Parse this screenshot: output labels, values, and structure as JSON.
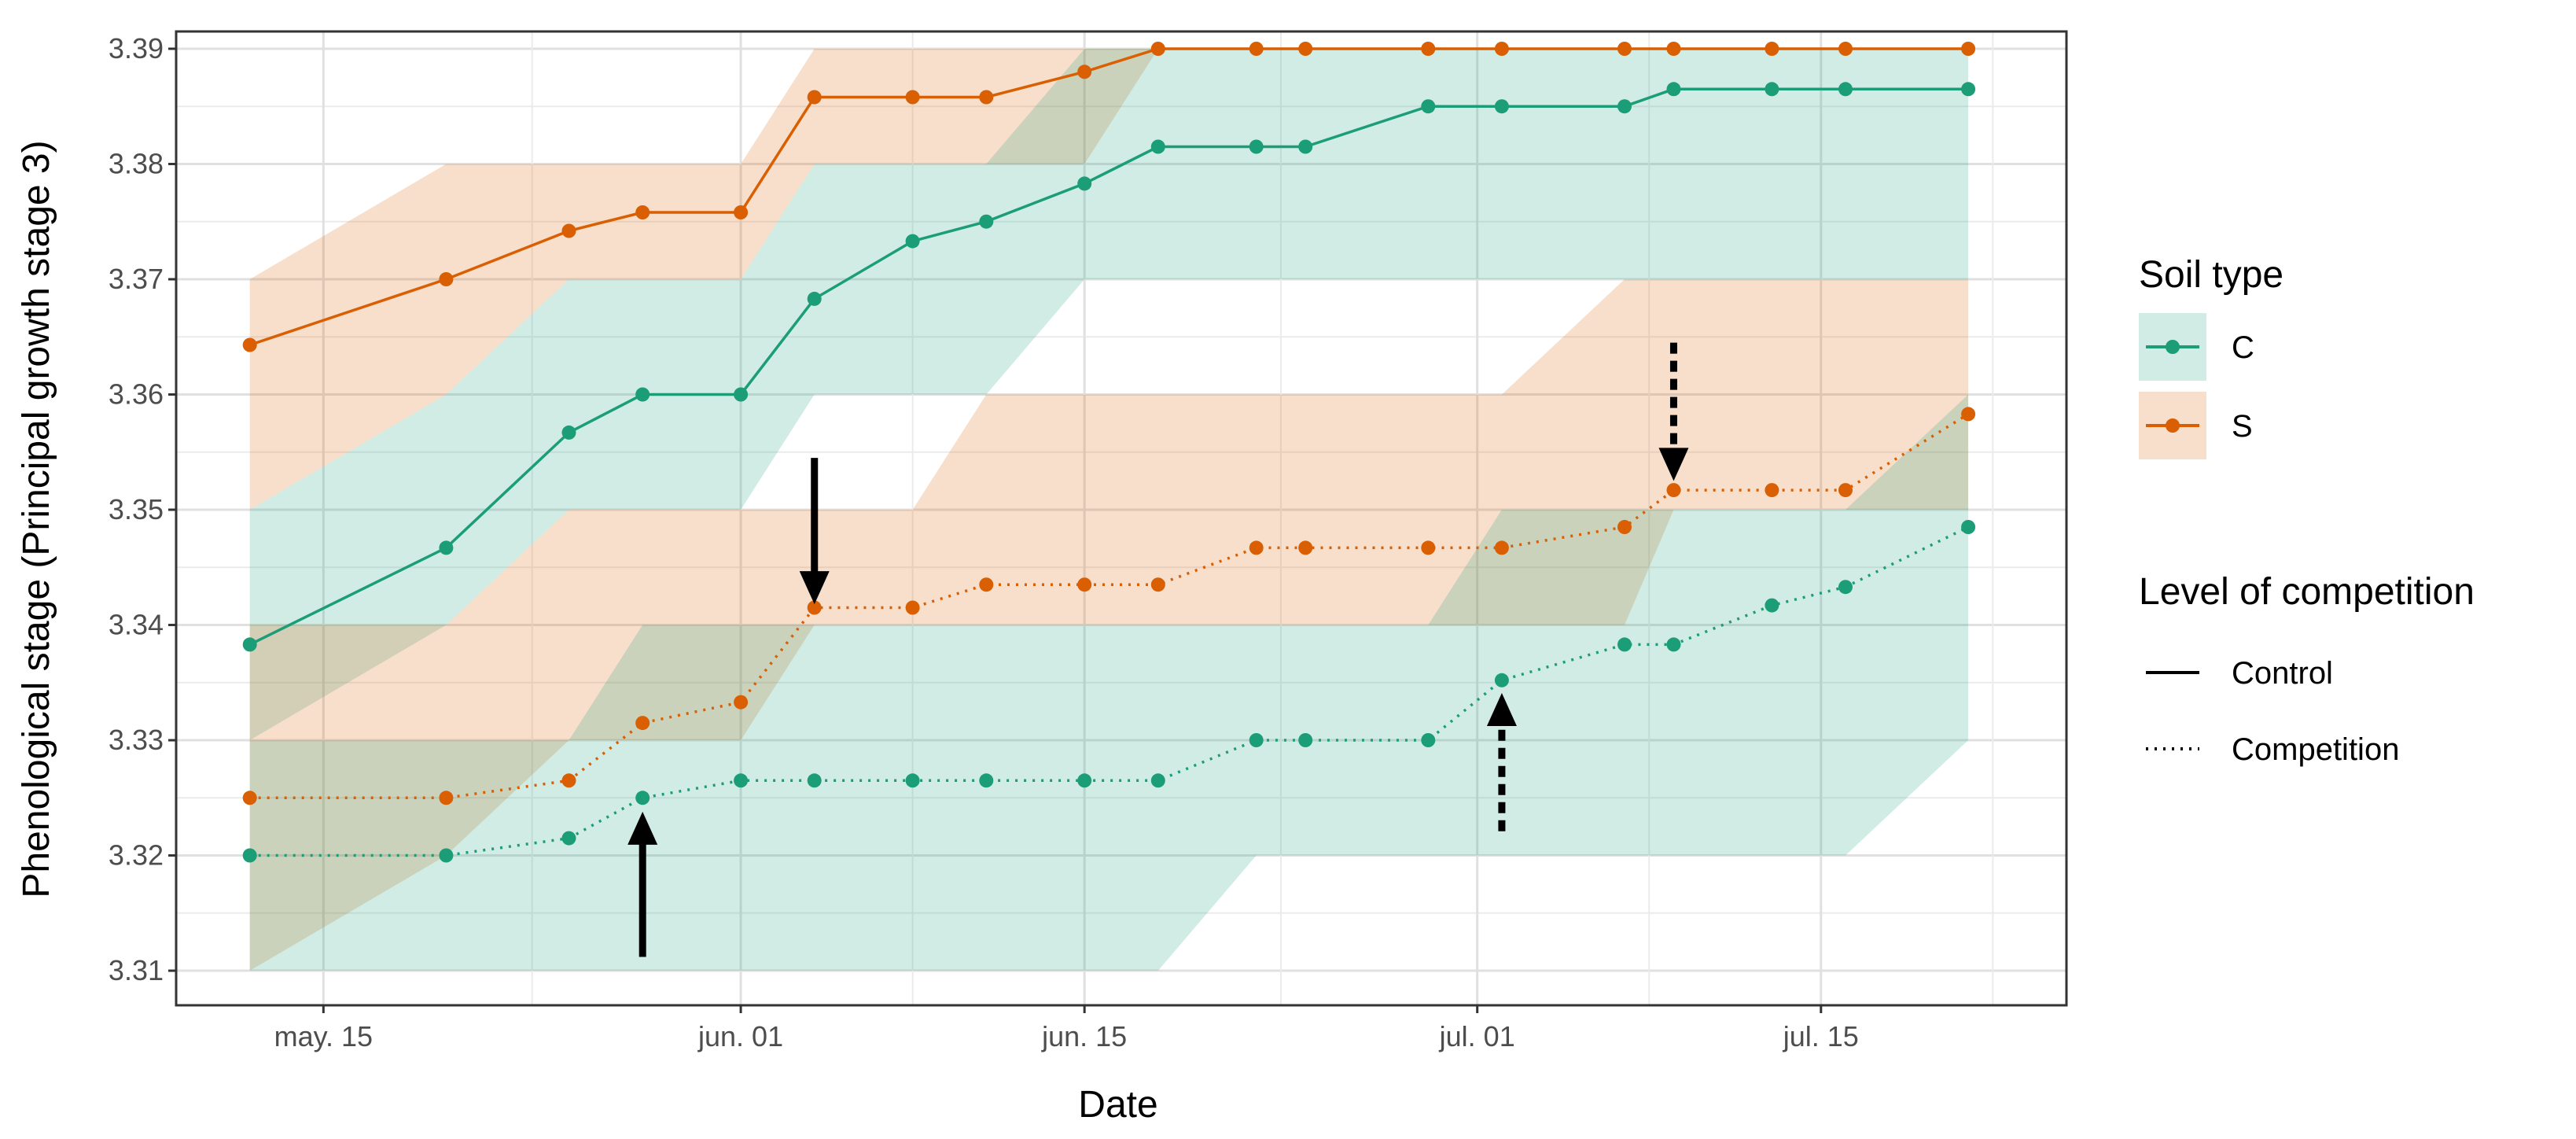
{
  "chart_data": {
    "type": "line",
    "xlabel": "Date",
    "ylabel": "Phenological stage (Principal growth stage 3)",
    "ylim": [
      3.307,
      3.3915
    ],
    "yticks": [
      3.31,
      3.32,
      3.33,
      3.34,
      3.35,
      3.36,
      3.37,
      3.38,
      3.39
    ],
    "xlim": [
      "2021-05-09",
      "2021-07-25"
    ],
    "xticks": [
      {
        "date": "2021-05-15",
        "label": "may. 15"
      },
      {
        "date": "2021-06-01",
        "label": "jun. 01"
      },
      {
        "date": "2021-06-15",
        "label": "jun. 15"
      },
      {
        "date": "2021-07-01",
        "label": "jul. 01"
      },
      {
        "date": "2021-07-15",
        "label": "jul. 15"
      }
    ],
    "grid": true,
    "legend_placement": "right",
    "legends": [
      {
        "title": "Soil type",
        "entries": [
          {
            "label": "C",
            "color": "#1b9e77"
          },
          {
            "label": "S",
            "color": "#d95f02"
          }
        ]
      },
      {
        "title": "Level of competition",
        "entries": [
          {
            "label": "Control",
            "linetype": "solid"
          },
          {
            "label": "Competition",
            "linetype": "dotted"
          }
        ]
      }
    ],
    "series": [
      {
        "soil": "S",
        "level": "Control",
        "color": "#d95f02",
        "linetype": "solid",
        "x": [
          "2021-05-12",
          "2021-05-20",
          "2021-05-25",
          "2021-05-28",
          "2021-06-01",
          "2021-06-04",
          "2021-06-08",
          "2021-06-11",
          "2021-06-15",
          "2021-06-18",
          "2021-06-22",
          "2021-06-24",
          "2021-06-29",
          "2021-07-02",
          "2021-07-07",
          "2021-07-09",
          "2021-07-13",
          "2021-07-16",
          "2021-07-21"
        ],
        "y": [
          3.3643,
          3.37,
          3.3742,
          3.3758,
          3.3758,
          3.3858,
          3.3858,
          3.3858,
          3.388,
          3.39,
          3.39,
          3.39,
          3.39,
          3.39,
          3.39,
          3.39,
          3.39,
          3.39,
          3.39
        ],
        "band_lower": [
          3.35,
          3.36,
          3.37,
          3.37,
          3.37,
          3.38,
          3.38,
          3.38,
          3.38,
          3.39,
          3.39,
          3.39,
          3.39,
          3.39,
          3.39,
          3.39,
          3.39,
          3.39,
          3.39
        ],
        "band_upper": [
          3.37,
          3.38,
          3.38,
          3.38,
          3.38,
          3.39,
          3.39,
          3.39,
          3.39,
          3.39,
          3.39,
          3.39,
          3.39,
          3.39,
          3.39,
          3.39,
          3.39,
          3.39,
          3.39
        ]
      },
      {
        "soil": "C",
        "level": "Control",
        "color": "#1b9e77",
        "linetype": "solid",
        "x": [
          "2021-05-12",
          "2021-05-20",
          "2021-05-25",
          "2021-05-28",
          "2021-06-01",
          "2021-06-04",
          "2021-06-08",
          "2021-06-11",
          "2021-06-15",
          "2021-06-18",
          "2021-06-22",
          "2021-06-24",
          "2021-06-29",
          "2021-07-02",
          "2021-07-07",
          "2021-07-09",
          "2021-07-13",
          "2021-07-16",
          "2021-07-21"
        ],
        "y": [
          3.3383,
          3.3467,
          3.3567,
          3.36,
          3.36,
          3.3683,
          3.3733,
          3.375,
          3.3783,
          3.3815,
          3.3815,
          3.3815,
          3.385,
          3.385,
          3.385,
          3.3865,
          3.3865,
          3.3865,
          3.3865
        ],
        "band_lower": [
          3.33,
          3.34,
          3.35,
          3.35,
          3.35,
          3.36,
          3.36,
          3.36,
          3.37,
          3.37,
          3.37,
          3.37,
          3.37,
          3.37,
          3.37,
          3.37,
          3.37,
          3.37,
          3.37
        ],
        "band_upper": [
          3.35,
          3.36,
          3.37,
          3.37,
          3.37,
          3.38,
          3.38,
          3.38,
          3.39,
          3.39,
          3.39,
          3.39,
          3.39,
          3.39,
          3.39,
          3.39,
          3.39,
          3.39,
          3.39
        ]
      },
      {
        "soil": "S",
        "level": "Competition",
        "color": "#d95f02",
        "linetype": "dotted",
        "x": [
          "2021-05-12",
          "2021-05-20",
          "2021-05-25",
          "2021-05-28",
          "2021-06-01",
          "2021-06-04",
          "2021-06-08",
          "2021-06-11",
          "2021-06-15",
          "2021-06-18",
          "2021-06-22",
          "2021-06-24",
          "2021-06-29",
          "2021-07-02",
          "2021-07-07",
          "2021-07-09",
          "2021-07-13",
          "2021-07-16",
          "2021-07-21"
        ],
        "y": [
          3.325,
          3.325,
          3.3265,
          3.3315,
          3.3333,
          3.3415,
          3.3415,
          3.3435,
          3.3435,
          3.3435,
          3.3467,
          3.3467,
          3.3467,
          3.3467,
          3.3485,
          3.3517,
          3.3517,
          3.3517,
          3.3583
        ],
        "band_lower": [
          3.31,
          3.32,
          3.33,
          3.33,
          3.33,
          3.34,
          3.34,
          3.34,
          3.34,
          3.34,
          3.34,
          3.34,
          3.34,
          3.34,
          3.34,
          3.35,
          3.35,
          3.35,
          3.35
        ],
        "band_upper": [
          3.34,
          3.34,
          3.35,
          3.35,
          3.35,
          3.35,
          3.35,
          3.36,
          3.36,
          3.36,
          3.36,
          3.36,
          3.36,
          3.36,
          3.37,
          3.37,
          3.37,
          3.37,
          3.37
        ]
      },
      {
        "soil": "C",
        "level": "Competition",
        "color": "#1b9e77",
        "linetype": "dotted",
        "x": [
          "2021-05-12",
          "2021-05-20",
          "2021-05-25",
          "2021-05-28",
          "2021-06-01",
          "2021-06-04",
          "2021-06-08",
          "2021-06-11",
          "2021-06-15",
          "2021-06-18",
          "2021-06-22",
          "2021-06-24",
          "2021-06-29",
          "2021-07-02",
          "2021-07-07",
          "2021-07-09",
          "2021-07-13",
          "2021-07-16",
          "2021-07-21"
        ],
        "y": [
          3.32,
          3.32,
          3.3215,
          3.325,
          3.3265,
          3.3265,
          3.3265,
          3.3265,
          3.3265,
          3.3265,
          3.33,
          3.33,
          3.33,
          3.3352,
          3.3383,
          3.3383,
          3.3417,
          3.3433,
          3.3485
        ],
        "band_lower": [
          3.31,
          3.31,
          3.31,
          3.31,
          3.31,
          3.31,
          3.31,
          3.31,
          3.31,
          3.31,
          3.32,
          3.32,
          3.32,
          3.32,
          3.32,
          3.32,
          3.32,
          3.32,
          3.33
        ],
        "band_upper": [
          3.33,
          3.33,
          3.33,
          3.34,
          3.34,
          3.34,
          3.34,
          3.34,
          3.34,
          3.34,
          3.34,
          3.34,
          3.34,
          3.35,
          3.35,
          3.35,
          3.35,
          3.35,
          3.36
        ]
      }
    ],
    "annotations": [
      {
        "type": "arrow",
        "linetype": "solid",
        "direction": "down",
        "x": "2021-06-04",
        "y_from": 3.3545,
        "y_to": 3.3418
      },
      {
        "type": "arrow",
        "linetype": "solid",
        "direction": "up",
        "x": "2021-05-28",
        "y_from": 3.3112,
        "y_to": 3.3238
      },
      {
        "type": "arrow",
        "linetype": "dotted",
        "direction": "up",
        "x": "2021-07-02",
        "y_from": 3.3221,
        "y_to": 3.3341
      },
      {
        "type": "arrow",
        "linetype": "dotted",
        "direction": "down",
        "x": "2021-07-09",
        "y_from": 3.3645,
        "y_to": 3.3525
      }
    ]
  }
}
